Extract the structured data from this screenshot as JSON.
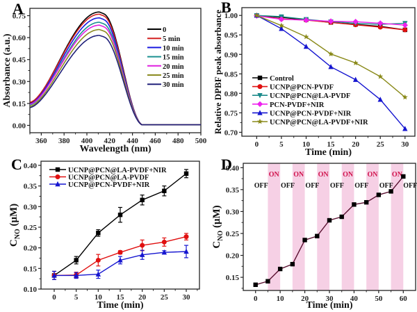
{
  "chart_data": [
    {
      "panel": "A",
      "type": "line",
      "xlabel": "Wavelength (nm)",
      "ylabel": "Absorbance (a.u.)",
      "xlim": [
        350,
        500
      ],
      "ylim": [
        -0.05,
        0.8
      ],
      "xticks": [
        360,
        380,
        400,
        420,
        440,
        460,
        480,
        500
      ],
      "yticks": [
        0.0,
        0.15,
        0.3,
        0.45,
        0.6,
        0.75
      ],
      "ytick_labels": [
        "0.00",
        "0.15",
        "0.30",
        "0.45",
        "0.60",
        "0.75"
      ],
      "legend_position": "top-right",
      "series": [
        {
          "name": "0",
          "color": "#000000",
          "peak": 0.775,
          "start": 0.155
        },
        {
          "name": "5 min",
          "color": "#d42020",
          "peak": 0.76,
          "start": 0.158
        },
        {
          "name": "10 min",
          "color": "#1a1ae0",
          "peak": 0.735,
          "start": 0.148
        },
        {
          "name": "15 min",
          "color": "#1a9090",
          "peak": 0.705,
          "start": 0.14
        },
        {
          "name": "20 min",
          "color": "#e020e0",
          "peak": 0.685,
          "start": 0.145
        },
        {
          "name": "25 min",
          "color": "#8a8a20",
          "peak": 0.655,
          "start": 0.13
        },
        {
          "name": "30 min",
          "color": "#20207a",
          "peak": 0.615,
          "start": 0.122
        }
      ]
    },
    {
      "panel": "B",
      "type": "line",
      "xlabel": "Time (min)",
      "ylabel": "Relative DPBF peak absorbance",
      "xlim": [
        -3,
        32
      ],
      "ylim": [
        0.69,
        1.02
      ],
      "x": [
        0,
        5,
        10,
        15,
        20,
        25,
        30
      ],
      "xticks": [
        0,
        5,
        10,
        15,
        20,
        25,
        30
      ],
      "yticks": [
        0.7,
        0.75,
        0.8,
        0.85,
        0.9,
        0.95,
        1.0
      ],
      "ytick_labels": [
        "0.70",
        "0.75",
        "0.80",
        "0.85",
        "0.90",
        "0.95",
        "1.00"
      ],
      "legend_position": "bottom-left",
      "series": [
        {
          "name": "Control",
          "color": "#000000",
          "marker": "square",
          "values": [
            1.0,
            0.995,
            0.989,
            0.982,
            0.977,
            0.972,
            0.963
          ]
        },
        {
          "name": "UCNP@PCN-PVDF",
          "color": "#e01010",
          "marker": "circle",
          "values": [
            1.0,
            0.991,
            0.988,
            0.982,
            0.976,
            0.97,
            0.963
          ]
        },
        {
          "name": "UCNP@PCN@LA-PVDF",
          "color": "#1a8a8a",
          "marker": "triangle-down",
          "values": [
            1.0,
            0.997,
            0.99,
            0.984,
            0.98,
            0.977,
            0.98
          ]
        },
        {
          "name": "PCN-PVDF+NIR",
          "color": "#ee20ee",
          "marker": "diamond",
          "values": [
            0.999,
            0.99,
            0.988,
            0.985,
            0.984,
            0.98,
            0.975
          ]
        },
        {
          "name": "UCNP@PCN-PVDF+NIR",
          "color": "#1515d0",
          "marker": "triangle-up",
          "values": [
            1.0,
            0.966,
            0.92,
            0.868,
            0.835,
            0.784,
            0.709
          ]
        },
        {
          "name": "UCNP@PCN@LA-PVDF+NIR",
          "color": "#8a8a1a",
          "marker": "star",
          "values": [
            1.0,
            0.974,
            0.945,
            0.901,
            0.878,
            0.843,
            0.79
          ]
        }
      ]
    },
    {
      "panel": "C",
      "type": "line",
      "xlabel": "Time (min)",
      "ylabel": "C_NO (μM)",
      "xlim": [
        -3,
        33
      ],
      "ylim": [
        0.1,
        0.41
      ],
      "x": [
        0,
        5,
        10,
        15,
        20,
        25,
        30
      ],
      "xticks": [
        0,
        5,
        10,
        15,
        20,
        25,
        30
      ],
      "yticks": [
        0.1,
        0.15,
        0.2,
        0.25,
        0.3,
        0.35,
        0.4
      ],
      "ytick_labels": [
        "0.10",
        "0.15",
        "0.20",
        "0.25",
        "0.30",
        "0.35",
        "0.40"
      ],
      "legend_position": "top-left",
      "series": [
        {
          "name": "UCNP@PCN@LA-PVDF+NIR",
          "color": "#000000",
          "marker": "square",
          "values": [
            0.133,
            0.17,
            0.236,
            0.28,
            0.316,
            0.338,
            0.38
          ],
          "errors": [
            0.01,
            0.009,
            0.008,
            0.018,
            0.012,
            0.012,
            0.01
          ]
        },
        {
          "name": "UCNP@PCN@LA-PVDF",
          "color": "#e01010",
          "marker": "circle",
          "values": [
            0.133,
            0.134,
            0.17,
            0.189,
            0.206,
            0.214,
            0.227
          ],
          "errors": [
            0.01,
            0.007,
            0.014,
            0.004,
            0.013,
            0.01,
            0.008
          ]
        },
        {
          "name": "UCNP@PCN-PVDF+NIR",
          "color": "#1515d0",
          "marker": "triangle-up",
          "values": [
            0.133,
            0.133,
            0.136,
            0.17,
            0.183,
            0.189,
            0.191
          ],
          "errors": [
            0.01,
            0.007,
            0.01,
            0.009,
            0.011,
            0.004,
            0.015
          ]
        }
      ]
    },
    {
      "panel": "D",
      "type": "line",
      "xlabel": "Time (min)",
      "ylabel": "C_NO (μM)",
      "xlim": [
        -5,
        65
      ],
      "ylim": [
        0.12,
        0.41
      ],
      "x": [
        0,
        5,
        10,
        15,
        20,
        25,
        30,
        35,
        40,
        45,
        50,
        55,
        60
      ],
      "xticks": [
        0,
        10,
        20,
        30,
        40,
        50,
        60
      ],
      "yticks": [
        0.15,
        0.2,
        0.25,
        0.3,
        0.35,
        0.4
      ],
      "ytick_labels": [
        "0.15",
        "0.20",
        "0.25",
        "0.30",
        "0.35",
        "0.40"
      ],
      "series": [
        {
          "name": "C_NO",
          "color": "#000000",
          "line_color": "#5a1030",
          "marker": "square",
          "values": [
            0.133,
            0.141,
            0.169,
            0.18,
            0.235,
            0.244,
            0.28,
            0.288,
            0.316,
            0.321,
            0.338,
            0.346,
            0.38
          ]
        }
      ],
      "on_intervals": [
        [
          5,
          10
        ],
        [
          15,
          20
        ],
        [
          25,
          30
        ],
        [
          35,
          40
        ],
        [
          45,
          50
        ],
        [
          55,
          60
        ]
      ],
      "on_label": "ON",
      "off_label": "OFF",
      "on_color": "#f4c8e0",
      "on_text_color": "#d0104a"
    }
  ],
  "panel_labels": [
    "A",
    "B",
    "C",
    "D"
  ]
}
